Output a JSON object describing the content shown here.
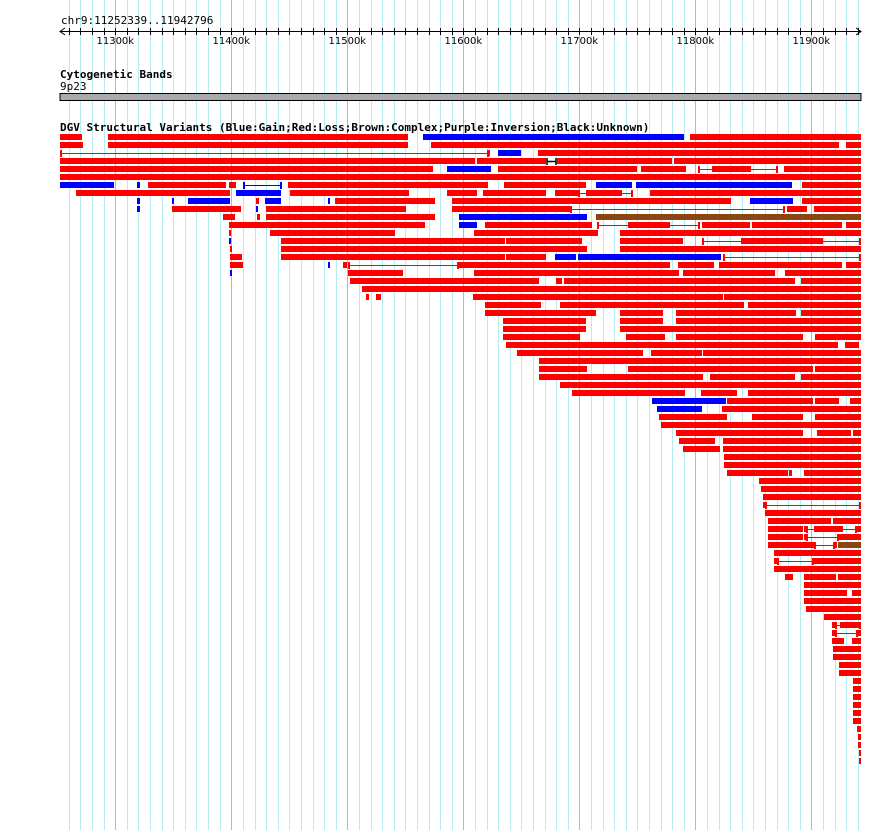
{
  "view": {
    "chrom": "chr9",
    "start_kb": 11252.339,
    "end_kb": 11942.796,
    "location_label": "chr9:11252339..11942796"
  },
  "ruler": {
    "minor_tick_step_kb": 10,
    "major_ticks": [
      {
        "kb": 11300,
        "label": "11300k"
      },
      {
        "kb": 11400,
        "label": "11400k"
      },
      {
        "kb": 11500,
        "label": "11500k"
      },
      {
        "kb": 11600,
        "label": "11600k"
      },
      {
        "kb": 11700,
        "label": "11700k"
      },
      {
        "kb": 11800,
        "label": "11800k"
      },
      {
        "kb": 11900,
        "label": "11900k"
      }
    ]
  },
  "cyto_track": {
    "title": "Cytogenetic Bands",
    "band": "9p23",
    "band_color": "#aaaaaa"
  },
  "dgv_track": {
    "title": "DGV Structural Variants (Blue:Gain;Red:Loss;Brown:Complex;Purple:Inversion;Black:Unknown)",
    "colors": {
      "r": "#ff0000",
      "b": "#0000ff",
      "n": "#8b4513",
      "l": "#ff0000",
      "bl": "#0000ff",
      "h": "#000000"
    },
    "type_legend": {
      "r": "Loss",
      "b": "Gain",
      "n": "Complex",
      "l": "Loss (split)",
      "bl": "Gain (split)",
      "h": "Unknown"
    },
    "features": [
      [
        0,
        11252,
        11271,
        "r"
      ],
      [
        0,
        11294,
        11552,
        "r"
      ],
      [
        0,
        11565,
        11790,
        "b"
      ],
      [
        0,
        11795,
        11943,
        "r"
      ],
      [
        1,
        11252,
        11272,
        "r"
      ],
      [
        1,
        11294,
        11552,
        "r"
      ],
      [
        1,
        11572,
        11924,
        "r"
      ],
      [
        1,
        11930,
        11943,
        "r"
      ],
      [
        2,
        11252,
        11622,
        "l"
      ],
      [
        2,
        11621,
        11622,
        "r"
      ],
      [
        2,
        11630,
        11650,
        "b"
      ],
      [
        2,
        11664,
        11943,
        "r"
      ],
      [
        3,
        11252,
        11610,
        "r"
      ],
      [
        3,
        11612,
        11671,
        "r"
      ],
      [
        3,
        11672,
        11680,
        "h"
      ],
      [
        3,
        11681,
        11780,
        "r"
      ],
      [
        3,
        11782,
        11943,
        "r"
      ],
      [
        4,
        11252,
        11574,
        "r"
      ],
      [
        4,
        11586,
        11624,
        "b"
      ],
      [
        4,
        11630,
        11750,
        "r"
      ],
      [
        4,
        11753,
        11792,
        "r"
      ],
      [
        4,
        11802,
        11871,
        "l"
      ],
      [
        4,
        11814,
        11848,
        "r"
      ],
      [
        4,
        11876,
        11943,
        "r"
      ],
      [
        5,
        11252,
        11943,
        "r"
      ],
      [
        6,
        11252,
        11299,
        "b"
      ],
      [
        6,
        11319,
        11321,
        "b"
      ],
      [
        6,
        11328,
        11395,
        "r"
      ],
      [
        6,
        11398,
        11404,
        "r"
      ],
      [
        6,
        11410,
        11444,
        "bl"
      ],
      [
        6,
        11449,
        11621,
        "r"
      ],
      [
        6,
        11635,
        11706,
        "r"
      ],
      [
        6,
        11714,
        11745,
        "b"
      ],
      [
        6,
        11749,
        11883,
        "b"
      ],
      [
        6,
        11892,
        11943,
        "r"
      ],
      [
        7,
        11266,
        11399,
        "r"
      ],
      [
        7,
        11404,
        11443,
        "b"
      ],
      [
        7,
        11451,
        11553,
        "r"
      ],
      [
        7,
        11586,
        11612,
        "r"
      ],
      [
        7,
        11617,
        11671,
        "r"
      ],
      [
        7,
        11679,
        11699,
        "r"
      ],
      [
        7,
        11699,
        11746,
        "l"
      ],
      [
        7,
        11706,
        11737,
        "r"
      ],
      [
        7,
        11761,
        11943,
        "r"
      ],
      [
        8,
        11319,
        11321,
        "b"
      ],
      [
        8,
        11349,
        11351,
        "b"
      ],
      [
        8,
        11363,
        11399,
        "b"
      ],
      [
        8,
        11421,
        11424,
        "r"
      ],
      [
        8,
        11429,
        11443,
        "b"
      ],
      [
        8,
        11483,
        11485,
        "b"
      ],
      [
        8,
        11489,
        11576,
        "r"
      ],
      [
        8,
        11590,
        11831,
        "r"
      ],
      [
        8,
        11847,
        11884,
        "b"
      ],
      [
        8,
        11892,
        11943,
        "r"
      ],
      [
        9,
        11319,
        11321,
        "b"
      ],
      [
        9,
        11349,
        11408,
        "r"
      ],
      [
        9,
        11421,
        11423,
        "b"
      ],
      [
        9,
        11430,
        11551,
        "r"
      ],
      [
        9,
        11590,
        11692,
        "r"
      ],
      [
        9,
        11692,
        11877,
        "l"
      ],
      [
        9,
        11879,
        11896,
        "r"
      ],
      [
        9,
        11902,
        11943,
        "r"
      ],
      [
        10,
        11393,
        11403,
        "r"
      ],
      [
        10,
        11422,
        11425,
        "r"
      ],
      [
        10,
        11430,
        11576,
        "r"
      ],
      [
        10,
        11596,
        11707,
        "b"
      ],
      [
        10,
        11714,
        11943,
        "n"
      ],
      [
        11,
        11398,
        11567,
        "r"
      ],
      [
        11,
        11596,
        11612,
        "b"
      ],
      [
        11,
        11619,
        11711,
        "r"
      ],
      [
        11,
        11715,
        11804,
        "l"
      ],
      [
        11,
        11742,
        11778,
        "r"
      ],
      [
        11,
        11806,
        11847,
        "r"
      ],
      [
        11,
        11849,
        11926,
        "r"
      ],
      [
        11,
        11930,
        11943,
        "r"
      ],
      [
        12,
        11398,
        11400,
        "r"
      ],
      [
        12,
        11433,
        11541,
        "r"
      ],
      [
        12,
        11609,
        11716,
        "r"
      ],
      [
        12,
        11735,
        11943,
        "r"
      ],
      [
        13,
        11398,
        11400,
        "b"
      ],
      [
        13,
        11443,
        11636,
        "r"
      ],
      [
        13,
        11637,
        11702,
        "r"
      ],
      [
        13,
        11735,
        11789,
        "r"
      ],
      [
        13,
        11806,
        11943,
        "l"
      ],
      [
        13,
        11839,
        11910,
        "r"
      ],
      [
        14,
        11399,
        11401,
        "r"
      ],
      [
        14,
        11443,
        11707,
        "r"
      ],
      [
        14,
        11735,
        11943,
        "r"
      ],
      [
        15,
        11399,
        11409,
        "r"
      ],
      [
        15,
        11443,
        11636,
        "r"
      ],
      [
        15,
        11637,
        11671,
        "r"
      ],
      [
        15,
        11679,
        11697,
        "b"
      ],
      [
        15,
        11699,
        11822,
        "b"
      ],
      [
        15,
        11824,
        11943,
        "l"
      ],
      [
        16,
        11399,
        11410,
        "r"
      ],
      [
        16,
        11483,
        11485,
        "b"
      ],
      [
        16,
        11496,
        11500,
        "r"
      ],
      [
        16,
        11501,
        11596,
        "l"
      ],
      [
        16,
        11596,
        11778,
        "r"
      ],
      [
        16,
        11785,
        11816,
        "r"
      ],
      [
        16,
        11820,
        11926,
        "r"
      ],
      [
        16,
        11930,
        11943,
        "r"
      ],
      [
        17,
        11399,
        11401,
        "b"
      ],
      [
        17,
        11501,
        11548,
        "r"
      ],
      [
        17,
        11609,
        11786,
        "r"
      ],
      [
        17,
        11789,
        11869,
        "r"
      ],
      [
        17,
        11877,
        11943,
        "r"
      ],
      [
        18,
        11502,
        11665,
        "r"
      ],
      [
        18,
        11680,
        11685,
        "r"
      ],
      [
        18,
        11687,
        11886,
        "r"
      ],
      [
        18,
        11891,
        11943,
        "r"
      ],
      [
        19,
        11513,
        11943,
        "r"
      ],
      [
        20,
        11516,
        11519,
        "r"
      ],
      [
        20,
        11525,
        11529,
        "r"
      ],
      [
        20,
        11608,
        11824,
        "r"
      ],
      [
        20,
        11825,
        11943,
        "r"
      ],
      [
        21,
        11619,
        11667,
        "r"
      ],
      [
        21,
        11683,
        11842,
        "r"
      ],
      [
        21,
        11845,
        11943,
        "r"
      ],
      [
        22,
        11619,
        11714,
        "r"
      ],
      [
        22,
        11735,
        11772,
        "r"
      ],
      [
        22,
        11783,
        11887,
        "r"
      ],
      [
        22,
        11891,
        11943,
        "r"
      ],
      [
        23,
        11634,
        11706,
        "r"
      ],
      [
        23,
        11735,
        11772,
        "r"
      ],
      [
        23,
        11783,
        11943,
        "r"
      ],
      [
        24,
        11634,
        11706,
        "r"
      ],
      [
        24,
        11735,
        11943,
        "r"
      ],
      [
        25,
        11634,
        11701,
        "r"
      ],
      [
        25,
        11740,
        11774,
        "r"
      ],
      [
        25,
        11783,
        11893,
        "r"
      ],
      [
        25,
        11903,
        11943,
        "r"
      ],
      [
        26,
        11637,
        11923,
        "r"
      ],
      [
        26,
        11929,
        11941,
        "r"
      ],
      [
        27,
        11646,
        11755,
        "r"
      ],
      [
        27,
        11762,
        11806,
        "r"
      ],
      [
        27,
        11807,
        11943,
        "r"
      ],
      [
        28,
        11665,
        11943,
        "r"
      ],
      [
        29,
        11665,
        11707,
        "r"
      ],
      [
        29,
        11742,
        11901,
        "r"
      ],
      [
        29,
        11903,
        11943,
        "r"
      ],
      [
        30,
        11665,
        11807,
        "r"
      ],
      [
        30,
        11813,
        11886,
        "r"
      ],
      [
        30,
        11891,
        11943,
        "r"
      ],
      [
        31,
        11683,
        11943,
        "r"
      ],
      [
        32,
        11694,
        11791,
        "r"
      ],
      [
        32,
        11805,
        11836,
        "r"
      ],
      [
        32,
        11845,
        11943,
        "r"
      ],
      [
        33,
        11763,
        11826,
        "b"
      ],
      [
        33,
        11827,
        11901,
        "r"
      ],
      [
        33,
        11903,
        11924,
        "r"
      ],
      [
        33,
        11933,
        11943,
        "r"
      ],
      [
        34,
        11767,
        11806,
        "b"
      ],
      [
        34,
        11823,
        11943,
        "r"
      ],
      [
        35,
        11769,
        11827,
        "r"
      ],
      [
        35,
        11849,
        11893,
        "r"
      ],
      [
        35,
        11903,
        11943,
        "r"
      ],
      [
        36,
        11770,
        11943,
        "r"
      ],
      [
        37,
        11783,
        11893,
        "r"
      ],
      [
        37,
        11905,
        11934,
        "r"
      ],
      [
        37,
        11936,
        11943,
        "r"
      ],
      [
        38,
        11786,
        11817,
        "r"
      ],
      [
        38,
        11824,
        11943,
        "r"
      ],
      [
        39,
        11789,
        11821,
        "r"
      ],
      [
        39,
        11824,
        11943,
        "r"
      ],
      [
        40,
        11825,
        11943,
        "r"
      ],
      [
        41,
        11825,
        11943,
        "r"
      ],
      [
        42,
        11827,
        11880,
        "r"
      ],
      [
        42,
        11881,
        11883,
        "r"
      ],
      [
        42,
        11894,
        11943,
        "r"
      ],
      [
        43,
        11855,
        11943,
        "r"
      ],
      [
        44,
        11857,
        11943,
        "r"
      ],
      [
        45,
        11858,
        11943,
        "r"
      ],
      [
        46,
        11858,
        11860,
        "r"
      ],
      [
        46,
        11860,
        11943,
        "l"
      ],
      [
        47,
        11860,
        11943,
        "r"
      ],
      [
        48,
        11863,
        11917,
        "r"
      ],
      [
        48,
        11919,
        11943,
        "r"
      ],
      [
        49,
        11863,
        11893,
        "r"
      ],
      [
        49,
        11894,
        11895,
        "r"
      ],
      [
        49,
        11895,
        11939,
        "l"
      ],
      [
        49,
        11902,
        11927,
        "r"
      ],
      [
        49,
        11939,
        11943,
        "r"
      ],
      [
        50,
        11863,
        11893,
        "r"
      ],
      [
        50,
        11894,
        11895,
        "r"
      ],
      [
        50,
        11895,
        11924,
        "l"
      ],
      [
        50,
        11924,
        11943,
        "r"
      ],
      [
        51,
        11863,
        11902,
        "r"
      ],
      [
        51,
        11902,
        11920,
        "l"
      ],
      [
        51,
        11920,
        11922,
        "r"
      ],
      [
        51,
        11923,
        11943,
        "n"
      ],
      [
        52,
        11868,
        11943,
        "r"
      ],
      [
        53,
        11868,
        11870,
        "r"
      ],
      [
        53,
        11870,
        11902,
        "l"
      ],
      [
        53,
        11902,
        11943,
        "r"
      ],
      [
        54,
        11868,
        11943,
        "r"
      ],
      [
        55,
        11877,
        11884,
        "r"
      ],
      [
        55,
        11894,
        11921,
        "r"
      ],
      [
        55,
        11923,
        11943,
        "r"
      ],
      [
        56,
        11894,
        11943,
        "r"
      ],
      [
        57,
        11894,
        11931,
        "r"
      ],
      [
        57,
        11935,
        11943,
        "r"
      ],
      [
        58,
        11894,
        11943,
        "r"
      ],
      [
        59,
        11895,
        11943,
        "r"
      ],
      [
        60,
        11911,
        11943,
        "r"
      ],
      [
        61,
        11918,
        11920,
        "r"
      ],
      [
        61,
        11920,
        11943,
        "l"
      ],
      [
        61,
        11925,
        11941,
        "r"
      ],
      [
        62,
        11918,
        11920,
        "r"
      ],
      [
        62,
        11920,
        11940,
        "l"
      ],
      [
        62,
        11940,
        11943,
        "r"
      ],
      [
        63,
        11918,
        11928,
        "r"
      ],
      [
        63,
        11935,
        11943,
        "r"
      ],
      [
        64,
        11919,
        11943,
        "r"
      ],
      [
        65,
        11919,
        11943,
        "r"
      ],
      [
        66,
        11924,
        11943,
        "r"
      ],
      [
        67,
        11924,
        11943,
        "r"
      ],
      [
        68,
        11936,
        11943,
        "r"
      ],
      [
        69,
        11936,
        11943,
        "r"
      ],
      [
        70,
        11936,
        11943,
        "r"
      ],
      [
        71,
        11936,
        11943,
        "r"
      ],
      [
        72,
        11936,
        11943,
        "r"
      ],
      [
        73,
        11936,
        11943,
        "r"
      ],
      [
        74,
        11939,
        11943,
        "r"
      ],
      [
        75,
        11940,
        11943,
        "r"
      ],
      [
        76,
        11940,
        11943,
        "r"
      ],
      [
        77,
        11941,
        11943,
        "r"
      ],
      [
        78,
        11941,
        11943,
        "r"
      ]
    ]
  }
}
